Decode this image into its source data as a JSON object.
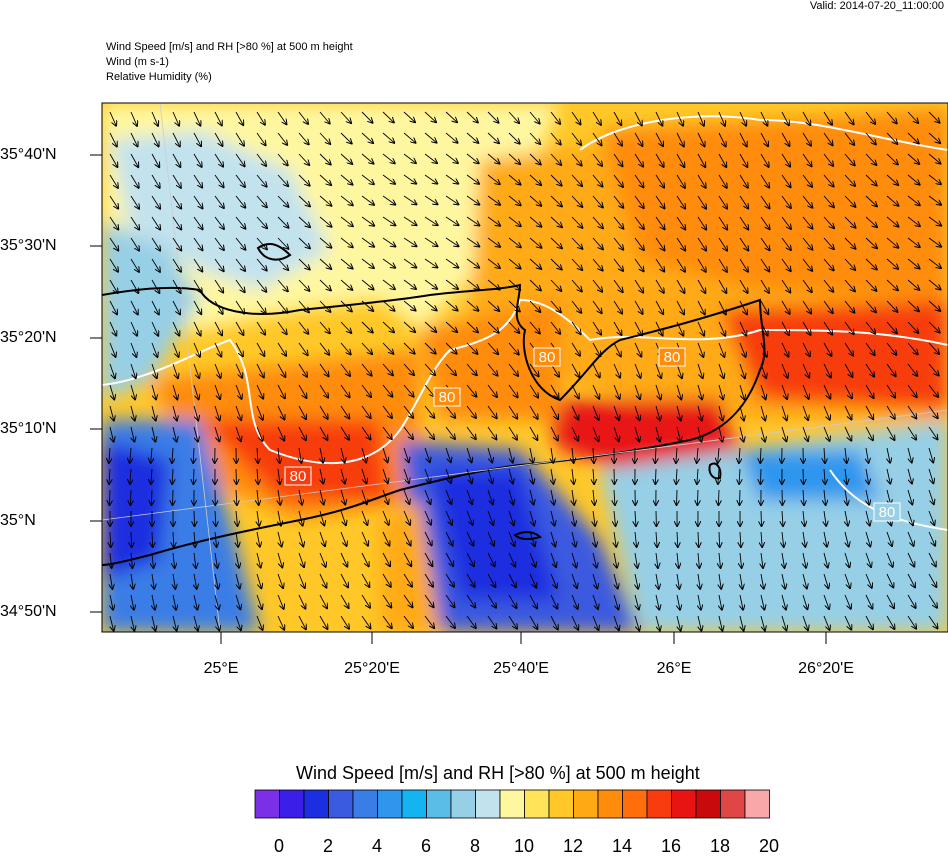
{
  "valid_time": "Valid: 2014-07-20_11:00:00",
  "header": {
    "line1": "Wind Speed [m/s] and RH [>80 %] at 500 m height",
    "line2": "Wind   (m s-1)",
    "line3": "Relative Humidity   (%)"
  },
  "axes": {
    "lat_labels": [
      "35°40'N",
      "35°30'N",
      "35°20'N",
      "35°10'N",
      "35°N",
      "34°50'N"
    ],
    "lon_labels": [
      "25°E",
      "25°20'E",
      "25°40'E",
      "26°E",
      "26°20'E"
    ]
  },
  "contour_labels": [
    "80",
    "80",
    "80",
    "80",
    "80"
  ],
  "colorbar": {
    "title": "Wind Speed [m/s] and RH [>80 %] at 500 m height",
    "tick_labels": [
      "0",
      "2",
      "4",
      "6",
      "8",
      "10",
      "12",
      "14",
      "16",
      "18",
      "20"
    ],
    "colors": [
      "#7b2fe6",
      "#3b1fe8",
      "#1b2fe0",
      "#3a5ae0",
      "#3a7de6",
      "#2f96ee",
      "#14b4f0",
      "#5abde8",
      "#96cfe6",
      "#c2e2ee",
      "#fff7a0",
      "#ffe45a",
      "#ffc828",
      "#ffaa14",
      "#ff8c0a",
      "#ff6e0a",
      "#f83c10",
      "#e81414",
      "#c80a0a",
      "#e04646",
      "#f8a8a8"
    ]
  },
  "colors": {
    "coastline": "#000000",
    "rh_contour": "#ffffff",
    "wind_arrow": "#000000"
  }
}
